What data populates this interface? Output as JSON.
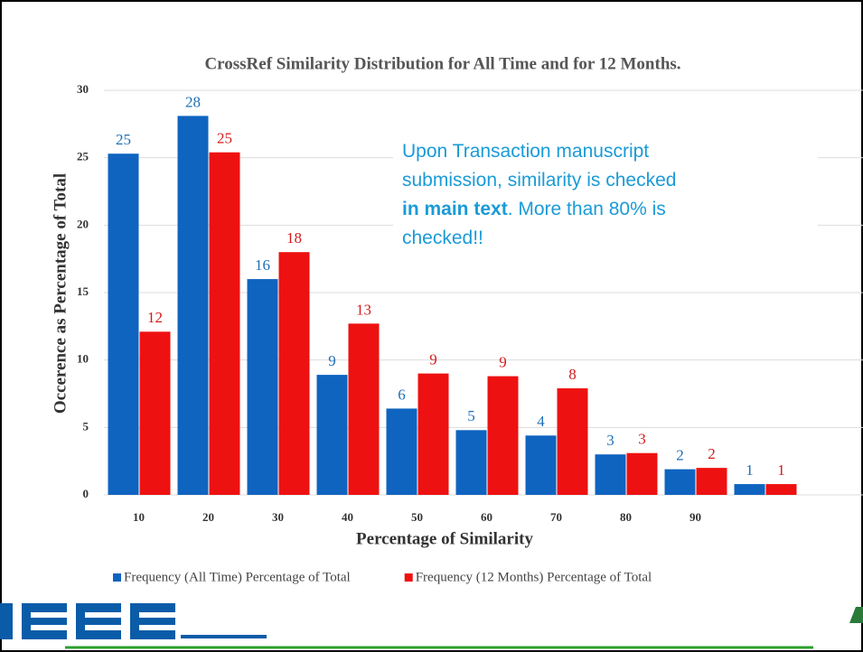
{
  "chart_data": {
    "type": "bar",
    "title": "CrossRef Similarity Distribution for All Time and for 12 Months.",
    "xlabel": "Percentage of Similarity",
    "ylabel": "Occerence as Percentage of Total",
    "categories": [
      "10",
      "20",
      "30",
      "40",
      "50",
      "60",
      "70",
      "80",
      "90",
      null
    ],
    "series": [
      {
        "name": "Frequency (All Time) Percentage of Total",
        "color": "#0f64c0",
        "values": [
          25.3,
          28.1,
          16,
          8.9,
          6.4,
          4.8,
          4.4,
          3,
          1.9,
          0.8
        ],
        "value_labels": [
          "25",
          "28",
          "16",
          "9",
          "6",
          "5",
          "4",
          "3",
          "2",
          "1"
        ]
      },
      {
        "name": "Frequency (12 Months) Percentage of Total",
        "color": "#ee1111",
        "values": [
          12.1,
          25.4,
          18,
          12.7,
          9,
          8.8,
          7.9,
          3.1,
          2,
          0.8
        ],
        "value_labels": [
          "12",
          "25",
          "18",
          "13",
          "9",
          "9",
          "8",
          "3",
          "2",
          "1"
        ]
      }
    ],
    "ylim": [
      0,
      30
    ],
    "yticks": [
      0,
      5,
      10,
      15,
      20,
      25,
      30
    ],
    "grid": true,
    "legend": "bottom",
    "annotation": [
      "Upon Transaction manuscript",
      "submission, similarity is checked",
      "in main text",
      ". More than 80% is",
      "checked!!"
    ]
  }
}
